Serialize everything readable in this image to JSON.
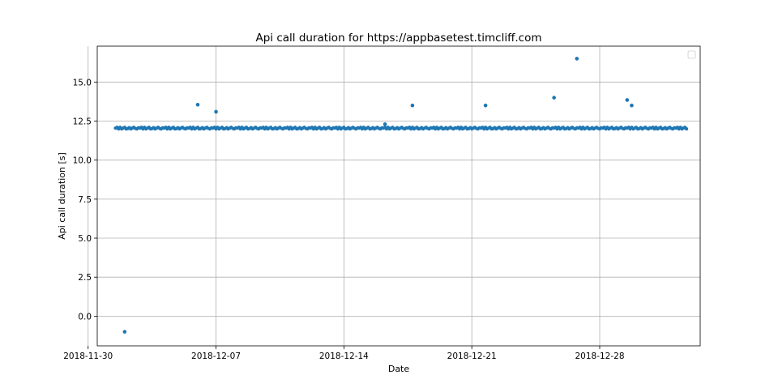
{
  "chart_data": {
    "type": "scatter",
    "title": "Api call duration for https://appbasetest.timcliff.com",
    "xlabel": "Date",
    "ylabel": "Api call duration [s]",
    "x_axis_type": "date",
    "xlim": [
      "2018-11-30T12:00",
      "2019-01-02T12:00"
    ],
    "ylim": [
      -1.9,
      17.3
    ],
    "x_ticks": [
      "2018-11-30",
      "2018-12-07",
      "2018-12-14",
      "2018-12-21",
      "2018-12-28"
    ],
    "y_ticks": [
      0.0,
      2.5,
      5.0,
      7.5,
      10.0,
      12.5,
      15.0
    ],
    "y_tick_labels": [
      "0.0",
      "2.5",
      "5.0",
      "7.5",
      "10.0",
      "12.5",
      "15.0"
    ],
    "grid": true,
    "legend": "top-right (empty)",
    "marker_color": "#1f77b4",
    "baseline": {
      "start": "2018-12-01T12:00",
      "end": "2019-01-01T18:00",
      "interval_hours": 2,
      "values": [
        12.05,
        12.1,
        12.0,
        12.1,
        12.0,
        12.05,
        12.1,
        12.0,
        12.02,
        12.08,
        12.0,
        12.05,
        12.1,
        12.03,
        12.0,
        12.07
      ]
    },
    "outliers": [
      {
        "x": "2018-12-02T00:00",
        "y": -1.0
      },
      {
        "x": "2018-12-06T00:00",
        "y": 13.55
      },
      {
        "x": "2018-12-07T00:00",
        "y": 13.1
      },
      {
        "x": "2018-12-16T06:00",
        "y": 12.3
      },
      {
        "x": "2018-12-17T18:00",
        "y": 13.5
      },
      {
        "x": "2018-12-21T18:00",
        "y": 13.5
      },
      {
        "x": "2018-12-25T12:00",
        "y": 14.0
      },
      {
        "x": "2018-12-26T18:00",
        "y": 16.5
      },
      {
        "x": "2018-12-29T12:00",
        "y": 13.85
      },
      {
        "x": "2018-12-29T18:00",
        "y": 13.5
      }
    ]
  }
}
